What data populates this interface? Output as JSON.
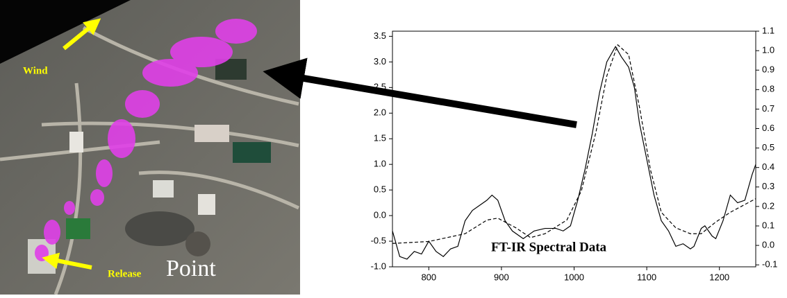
{
  "image_labels": {
    "wind": "Wind",
    "release": "Release",
    "point": "Point"
  },
  "chart_data": {
    "type": "line",
    "annotation": "FT-IR Spectral Data",
    "xlim": [
      750,
      1250
    ],
    "xticks": [
      800,
      900,
      1000,
      1100,
      1200
    ],
    "ylim": [
      -1,
      3.6
    ],
    "yticks": [
      {
        "value": -1,
        "label": "-1.0"
      },
      -0.5,
      {
        "value": 0,
        "label": "0.0"
      },
      0.5,
      {
        "value": 1,
        "label": "1.0"
      },
      1.5,
      {
        "value": 2,
        "label": "2.0"
      },
      2.5,
      {
        "value": 3,
        "label": "3.0"
      },
      3.5
    ],
    "y2lim": [
      -0.11,
      1.1
    ],
    "y2ticks": [
      -0.1,
      {
        "value": 0,
        "label": "0.0"
      },
      0.1,
      0.2,
      0.3,
      0.4,
      0.5,
      0.6,
      0.7,
      0.8,
      0.9,
      {
        "value": 1,
        "label": "1.0"
      },
      1.1
    ],
    "series": [
      {
        "color": "#000000",
        "line_style": "solid",
        "x": [
          750,
          760,
          770,
          780,
          790,
          800,
          810,
          820,
          830,
          840,
          850,
          860,
          880,
          887,
          895,
          905,
          915,
          930,
          945,
          960,
          975,
          985,
          995,
          1005,
          1015,
          1025,
          1035,
          1045,
          1057,
          1065,
          1075,
          1083,
          1090,
          1100,
          1110,
          1120,
          1130,
          1140,
          1150,
          1160,
          1165,
          1175,
          1180,
          1190,
          1195,
          1205,
          1215,
          1225,
          1235,
          1245,
          1250
        ],
        "values": [
          -0.3,
          -0.8,
          -0.85,
          -0.7,
          -0.75,
          -0.5,
          -0.7,
          -0.8,
          -0.65,
          -0.6,
          -0.1,
          0.1,
          0.3,
          0.4,
          0.3,
          -0.1,
          -0.3,
          -0.45,
          -0.3,
          -0.25,
          -0.25,
          -0.3,
          -0.2,
          0.3,
          0.9,
          1.6,
          2.4,
          3.0,
          3.3,
          3.1,
          2.9,
          2.5,
          1.8,
          1.1,
          0.4,
          -0.1,
          -0.3,
          -0.6,
          -0.55,
          -0.65,
          -0.6,
          -0.25,
          -0.2,
          -0.4,
          -0.45,
          -0.1,
          0.4,
          0.25,
          0.3,
          0.8,
          1.0
        ]
      },
      {
        "color": "#000000",
        "line_style": "dashed",
        "axis": "y2",
        "x": [
          750,
          800,
          850,
          880,
          895,
          920,
          940,
          960,
          990,
          1010,
          1030,
          1045,
          1060,
          1075,
          1090,
          1105,
          1120,
          1140,
          1160,
          1175,
          1195,
          1215,
          1240,
          1250
        ],
        "values": [
          0.01,
          0.02,
          0.06,
          0.13,
          0.14,
          0.09,
          0.04,
          0.06,
          0.13,
          0.28,
          0.58,
          0.87,
          1.03,
          0.98,
          0.71,
          0.39,
          0.17,
          0.09,
          0.06,
          0.06,
          0.12,
          0.17,
          0.22,
          0.24
        ]
      }
    ]
  }
}
